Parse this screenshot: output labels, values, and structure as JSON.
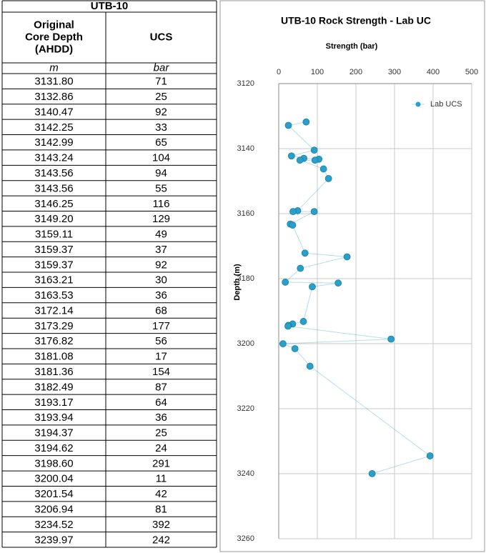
{
  "table": {
    "title": "UTB-10",
    "header": [
      [
        "Original",
        "Core Depth",
        "(AHDD)"
      ],
      [
        "UCS"
      ]
    ],
    "units": [
      "m",
      "bar"
    ],
    "rows": [
      [
        "3131.80",
        "71"
      ],
      [
        "3132.86",
        "25"
      ],
      [
        "3140.47",
        "92"
      ],
      [
        "3142.25",
        "33"
      ],
      [
        "3142.99",
        "65"
      ],
      [
        "3143.24",
        "104"
      ],
      [
        "3143.56",
        "94"
      ],
      [
        "3143.56",
        "55"
      ],
      [
        "3146.25",
        "116"
      ],
      [
        "3149.20",
        "129"
      ],
      [
        "3159.11",
        "49"
      ],
      [
        "3159.37",
        "37"
      ],
      [
        "3159.37",
        "92"
      ],
      [
        "3163.21",
        "30"
      ],
      [
        "3163.53",
        "36"
      ],
      [
        "3172.14",
        "68"
      ],
      [
        "3173.29",
        "177"
      ],
      [
        "3176.82",
        "56"
      ],
      [
        "3181.08",
        "17"
      ],
      [
        "3181.36",
        "154"
      ],
      [
        "3182.49",
        "87"
      ],
      [
        "3193.17",
        "64"
      ],
      [
        "3193.94",
        "36"
      ],
      [
        "3194.37",
        "25"
      ],
      [
        "3194.62",
        "24"
      ],
      [
        "3198.60",
        "291"
      ],
      [
        "3200.04",
        "11"
      ],
      [
        "3201.54",
        "42"
      ],
      [
        "3206.94",
        "81"
      ],
      [
        "3234.52",
        "392"
      ],
      [
        "3239.97",
        "242"
      ]
    ]
  },
  "chart_data": {
    "type": "scatter",
    "title": "UTB-10 Rock Strength - Lab UC",
    "x_label": "Strength (bar)",
    "y_label": "Depth (m)",
    "xlim": [
      0,
      500
    ],
    "xticks": [
      0,
      100,
      200,
      300,
      400,
      500
    ],
    "ylim": [
      3120,
      3260
    ],
    "yticks": [
      3120,
      3140,
      3160,
      3180,
      3200,
      3220,
      3240,
      3260
    ],
    "y_inverted": true,
    "grid": true,
    "legend": "upper right",
    "connect": true,
    "series": [
      {
        "name": "Lab UCS",
        "color": "#2a9fc9",
        "x": [
          71,
          25,
          92,
          33,
          65,
          104,
          94,
          55,
          116,
          129,
          49,
          37,
          92,
          30,
          36,
          68,
          177,
          56,
          17,
          154,
          87,
          64,
          36,
          25,
          24,
          291,
          11,
          42,
          81,
          392,
          242
        ],
        "values": [
          3131.8,
          3132.86,
          3140.47,
          3142.25,
          3142.99,
          3143.24,
          3143.56,
          3143.56,
          3146.25,
          3149.2,
          3159.11,
          3159.37,
          3159.37,
          3163.21,
          3163.53,
          3172.14,
          3173.29,
          3176.82,
          3181.08,
          3181.36,
          3182.49,
          3193.17,
          3193.94,
          3194.37,
          3194.62,
          3198.6,
          3200.04,
          3201.54,
          3206.94,
          3234.52,
          3239.97
        ]
      }
    ]
  }
}
